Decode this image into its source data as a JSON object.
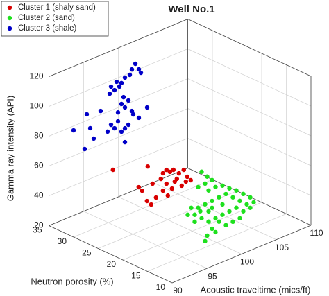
{
  "chart_data": {
    "type": "scatter3d",
    "title": "Well No.1",
    "xlabel": "Acoustic traveltime (mics/ft)",
    "ylabel": "Neutron porosity (%)",
    "zlabel": "Gamma ray intensity (API)",
    "xlim": [
      90,
      110
    ],
    "ylim": [
      10,
      35
    ],
    "zlim": [
      20,
      120
    ],
    "xticks": [
      90,
      95,
      100,
      105,
      110
    ],
    "yticks": [
      10,
      15,
      20,
      25,
      30,
      35
    ],
    "zticks": [
      20,
      40,
      60,
      80,
      100,
      120
    ],
    "grid": true,
    "legend": "upper left",
    "series": [
      {
        "name": "Cluster 1 (shaly sand)",
        "color": "#d80000",
        "x": [
          90.0,
          95.0,
          97.7,
          97.2,
          98.2,
          98.7,
          99.5,
          100.2,
          100.7,
          101.2,
          99.2,
          97.7,
          96.9,
          95.7,
          99.9,
          98.5,
          97.2,
          97.9,
          96.2,
          94.9,
          94.2,
          95.5,
          93.7,
          100.5,
          98.9
        ],
        "y": [
          22,
          22,
          22,
          22,
          22,
          22,
          22,
          22,
          22,
          22,
          22,
          22,
          22,
          22,
          22,
          22,
          22,
          22,
          22,
          22,
          22,
          22,
          22,
          22,
          22
        ],
        "z": [
          77.4,
          70.0,
          62.5,
          61.2,
          60.2,
          60.6,
          56.7,
          57.7,
          52.1,
          48.8,
          53.6,
          53.2,
          58.0,
          57.1,
          47.6,
          48.4,
          49.5,
          44.9,
          46.8,
          47.0,
          55.3,
          43.5,
          58.6,
          49.2,
          52.3
        ]
      },
      {
        "name": "Cluster 2 (sand)",
        "color": "#1ee01e",
        "x": [
          97.8,
          98.6,
          99.3,
          98.3,
          97.3,
          98.8,
          99.8,
          100.8,
          101.8,
          102.8,
          103.8,
          104.8,
          105.3,
          104.3,
          103.3,
          102.3,
          101.3,
          100.3,
          99.3,
          98.3,
          97.3,
          96.8,
          97.8,
          98.8,
          99.8,
          100.8,
          101.8,
          102.8,
          103.8,
          102.3,
          101.3,
          100.3,
          99.3,
          98.6,
          98.3,
          99.8,
          96.8,
          97.6,
          98.8,
          100.8,
          103.3,
          104.8,
          95.8,
          96.3,
          99.3
        ],
        "y": [
          15,
          15,
          15,
          15,
          15,
          15,
          15,
          15,
          15,
          15,
          15,
          15,
          15,
          15,
          15,
          15,
          15,
          15,
          15,
          15,
          15,
          15,
          15,
          15,
          15,
          15,
          15,
          15,
          15,
          15,
          15,
          15,
          15,
          15,
          15,
          15,
          15,
          15,
          15,
          15,
          15,
          15,
          15,
          15,
          15
        ],
        "z": [
          71.8,
          67.0,
          63.3,
          62.9,
          62.5,
          57.3,
          57.7,
          56.7,
          52.9,
          49.6,
          45.3,
          41.1,
          36.8,
          37.4,
          41.6,
          45.9,
          50.1,
          49.8,
          49.3,
          49.0,
          48.6,
          44.9,
          40.6,
          36.4,
          36.7,
          37.2,
          37.5,
          38.0,
          33.7,
          29.6,
          29.2,
          33.5,
          30.7,
          27.4,
          24.3,
          27.4,
          40.2,
          45.7,
          43.3,
          44.1,
          30.0,
          34.1,
          46.8,
          50.5,
          44.7
        ]
      },
      {
        "name": "Cluster 3 (shale)",
        "color": "#0000c8",
        "x": [
          98.9,
          99.4,
          98.4,
          99.7,
          98.1,
          97.4,
          96.2,
          96.9,
          95.4,
          95.9,
          96.6,
          95.2,
          97.2,
          97.9,
          96.9,
          97.4,
          98.4,
          100.6,
          99.4,
          93.9,
          91.9,
          96.4,
          97.9,
          97.4,
          95.9,
          94.9,
          96.9,
          92.4,
          90.0,
          92.9,
          97.4,
          91.6,
          95.4,
          98.6,
          96.4
        ],
        "y": [
          30,
          30,
          30,
          30,
          30,
          30,
          30,
          30,
          30,
          30,
          30,
          30,
          30,
          30,
          30,
          30,
          30,
          30,
          30,
          30,
          30,
          30,
          30,
          30,
          30,
          30,
          30,
          30,
          30,
          30,
          30,
          30,
          30,
          30,
          30
        ],
        "z": [
          119.1,
          114.4,
          116.3,
          111.5,
          113.2,
          112.7,
          112.2,
          110.0,
          110.5,
          107.2,
          108.2,
          106.2,
          100.0,
          96.4,
          96.0,
          92.7,
          88.4,
          86.5,
          81.9,
          97.1,
          98.7,
          85.3,
          80.1,
          78.7,
          81.6,
          81.3,
          77.4,
          88.4,
          91.6,
          80.5,
          69.4,
          76.0,
          84.9,
          85.7,
          91.3
        ]
      }
    ]
  }
}
